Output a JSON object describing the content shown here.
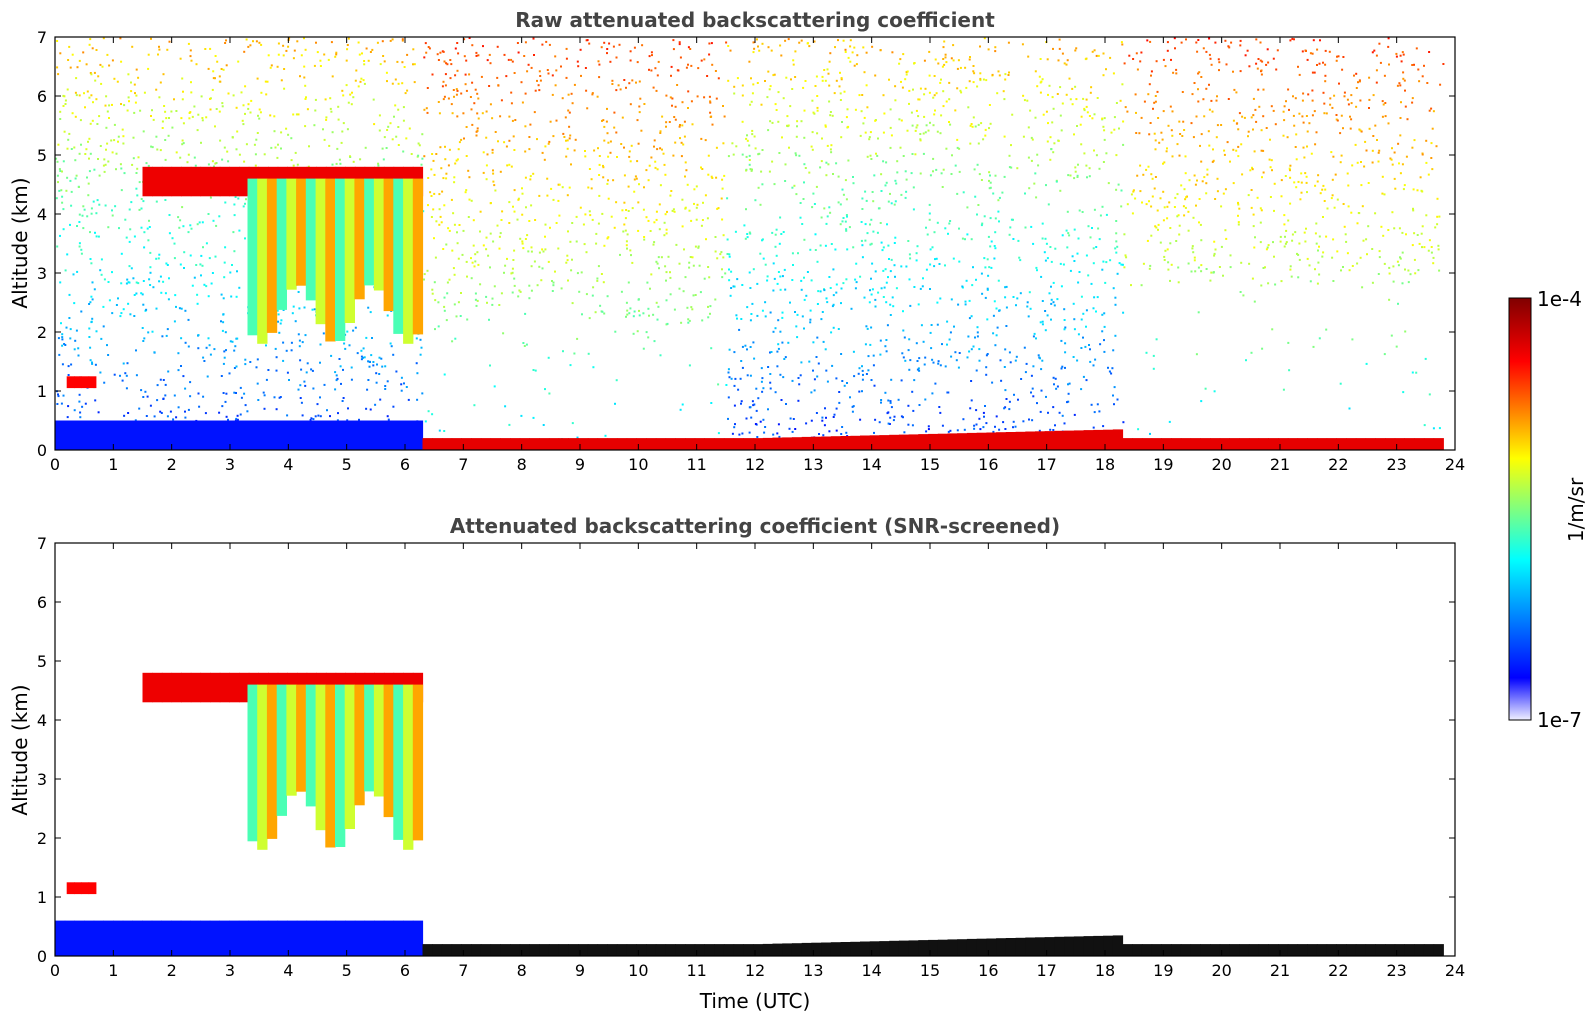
{
  "chart_data": [
    {
      "type": "heatmap",
      "title": "Raw attenuated backscattering coefficient",
      "xlabel": "",
      "ylabel": "Altitude (km)",
      "xlim": [
        0,
        24
      ],
      "ylim": [
        0,
        7
      ],
      "xticks": [
        "0",
        "1",
        "2",
        "3",
        "4",
        "5",
        "6",
        "7",
        "8",
        "9",
        "10",
        "11",
        "12",
        "13",
        "14",
        "15",
        "16",
        "17",
        "18",
        "19",
        "20",
        "21",
        "22",
        "23",
        "24"
      ],
      "yticks": [
        "0",
        "1",
        "2",
        "3",
        "4",
        "5",
        "6",
        "7"
      ],
      "instrument_end_time": 23.8,
      "colorscale": "jet",
      "features": [
        {
          "kind": "cloud",
          "time_start": 1.5,
          "time_end": 6.3,
          "alt_base": 4.3,
          "alt_top": 4.8,
          "intensity": "high"
        },
        {
          "kind": "precipitating cloud",
          "time_start": 3.3,
          "time_end": 6.3,
          "alt_base": 1.8,
          "alt_top": 4.6,
          "intensity": "medium-high"
        },
        {
          "kind": "low cloud",
          "time_start": 0.2,
          "time_end": 0.7,
          "alt_base": 1.05,
          "alt_top": 1.25,
          "intensity": "high"
        },
        {
          "kind": "aerosol layer",
          "time_start": 0.0,
          "time_end": 6.3,
          "alt_base": 0.0,
          "alt_top": 0.5,
          "intensity": "low"
        },
        {
          "kind": "boundary layer",
          "time_start": 6.3,
          "time_end": 23.8,
          "alt_base": 0.0,
          "alt_top": 0.45,
          "intensity": "high"
        },
        {
          "kind": "noise",
          "time_start": 0.0,
          "time_end": 23.8,
          "alt_base": 2.0,
          "alt_top": 7.0,
          "intensity": "sky background"
        }
      ]
    },
    {
      "type": "heatmap",
      "title": "Attenuated backscattering coefficient (SNR-screened)",
      "xlabel": "Time (UTC)",
      "ylabel": "Altitude (km)",
      "xlim": [
        0,
        24
      ],
      "ylim": [
        0,
        7
      ],
      "xticks": [
        "0",
        "1",
        "2",
        "3",
        "4",
        "5",
        "6",
        "7",
        "8",
        "9",
        "10",
        "11",
        "12",
        "13",
        "14",
        "15",
        "16",
        "17",
        "18",
        "19",
        "20",
        "21",
        "22",
        "23",
        "24"
      ],
      "yticks": [
        "0",
        "1",
        "2",
        "3",
        "4",
        "5",
        "6",
        "7"
      ],
      "instrument_end_time": 23.8,
      "colorscale": "jet",
      "features": [
        {
          "kind": "cloud",
          "time_start": 1.5,
          "time_end": 6.3,
          "alt_base": 4.3,
          "alt_top": 4.8,
          "intensity": "high"
        },
        {
          "kind": "precipitating cloud",
          "time_start": 3.3,
          "time_end": 6.3,
          "alt_base": 1.8,
          "alt_top": 4.6,
          "intensity": "medium-high"
        },
        {
          "kind": "low cloud",
          "time_start": 0.2,
          "time_end": 0.7,
          "alt_base": 1.05,
          "alt_top": 1.25,
          "intensity": "high"
        },
        {
          "kind": "aerosol layer",
          "time_start": 0.0,
          "time_end": 6.3,
          "alt_base": 0.0,
          "alt_top": 0.6,
          "intensity": "low"
        },
        {
          "kind": "boundary layer",
          "time_start": 6.3,
          "time_end": 23.8,
          "alt_base": 0.0,
          "alt_top": 0.45,
          "intensity": "saturated"
        }
      ]
    }
  ],
  "colorbar": {
    "max_label": "1e-4",
    "min_label": "1e-7",
    "unit_label": "1/m/sr",
    "stops": [
      "#e8e8ff",
      "#0000ff",
      "#00ffff",
      "#ffff00",
      "#ff0000",
      "#800000"
    ]
  }
}
